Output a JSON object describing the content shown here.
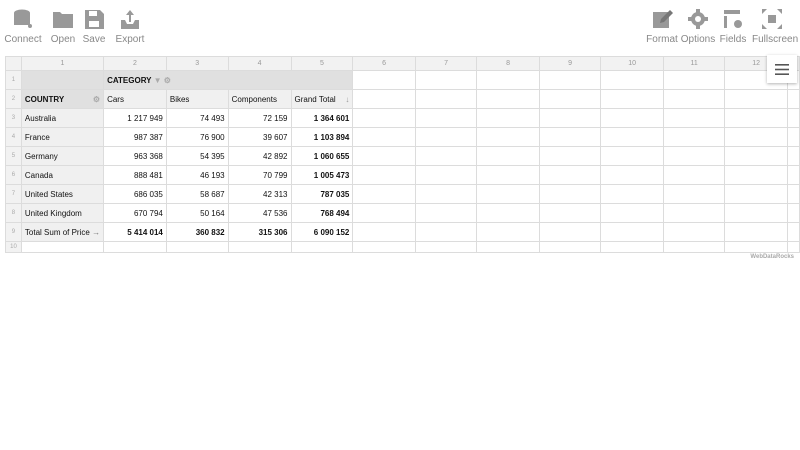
{
  "toolbar": {
    "left": [
      {
        "label": "Connect",
        "icon": "database-icon"
      },
      {
        "label": "Open",
        "icon": "folder-icon"
      },
      {
        "label": "Save",
        "icon": "save-icon"
      },
      {
        "label": "Export",
        "icon": "export-icon"
      }
    ],
    "right": [
      {
        "label": "Format",
        "icon": "format-icon"
      },
      {
        "label": "Options",
        "icon": "gear-icon"
      },
      {
        "label": "Fields",
        "icon": "fields-icon"
      },
      {
        "label": "Fullscreen",
        "icon": "fullscreen-icon"
      }
    ]
  },
  "grid": {
    "col_numbers": [
      "1",
      "2",
      "3",
      "4",
      "5",
      "6",
      "7",
      "8",
      "9",
      "10",
      "11",
      "12"
    ],
    "row_numbers": [
      "1",
      "2",
      "3",
      "4",
      "5",
      "6",
      "7",
      "8",
      "9",
      "10"
    ],
    "column_field": "CATEGORY",
    "row_field": "COUNTRY",
    "columns": [
      "Cars",
      "Bikes",
      "Components",
      "Grand Total"
    ],
    "rows": [
      {
        "label": "Australia",
        "values": [
          "1 217 949",
          "74 493",
          "72 159",
          "1 364 601"
        ]
      },
      {
        "label": "France",
        "values": [
          "987 387",
          "76 900",
          "39 607",
          "1 103 894"
        ]
      },
      {
        "label": "Germany",
        "values": [
          "963 368",
          "54 395",
          "42 892",
          "1 060 655"
        ]
      },
      {
        "label": "Canada",
        "values": [
          "888 481",
          "46 193",
          "70 799",
          "1 005 473"
        ]
      },
      {
        "label": "United States",
        "values": [
          "686 035",
          "58 687",
          "42 313",
          "787 035"
        ]
      },
      {
        "label": "United Kingdom",
        "values": [
          "670 794",
          "50 164",
          "47 536",
          "768 494"
        ]
      }
    ],
    "total": {
      "label": "Total Sum of Price",
      "values": [
        "5 414 014",
        "360 832",
        "315 306",
        "6 090 152"
      ]
    }
  },
  "branding": "WebDataRocks"
}
